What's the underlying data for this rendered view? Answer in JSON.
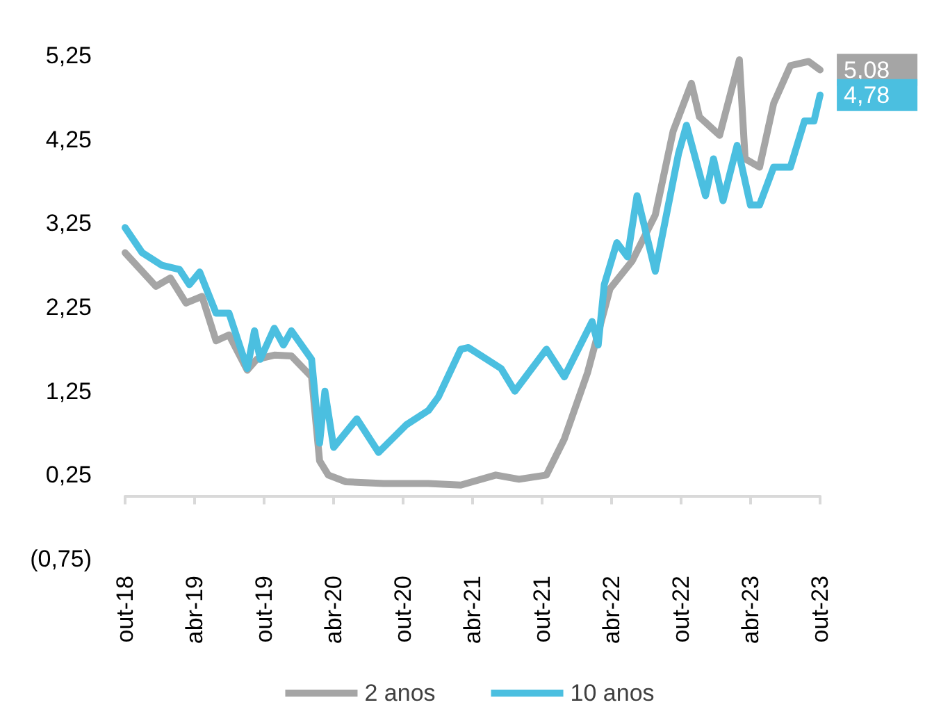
{
  "chart_data": {
    "type": "line",
    "xlim": [
      "2018-10-01",
      "2023-10-01"
    ],
    "xticks": [
      {
        "value": "2018-10-01",
        "label": "out-18"
      },
      {
        "value": "2019-04-01",
        "label": "abr-19"
      },
      {
        "value": "2019-10-01",
        "label": "out-19"
      },
      {
        "value": "2020-04-01",
        "label": "abr-20"
      },
      {
        "value": "2020-10-01",
        "label": "out-20"
      },
      {
        "value": "2021-04-01",
        "label": "abr-21"
      },
      {
        "value": "2021-10-01",
        "label": "out-21"
      },
      {
        "value": "2022-04-01",
        "label": "abr-22"
      },
      {
        "value": "2022-10-01",
        "label": "out-22"
      },
      {
        "value": "2023-04-01",
        "label": "abr-23"
      },
      {
        "value": "2023-10-01",
        "label": "out-23"
      }
    ],
    "ylim": [
      -0.75,
      5.25
    ],
    "yticks": [
      {
        "value": -0.75,
        "label": "(0,75)"
      },
      {
        "value": 0.25,
        "label": "0,25"
      },
      {
        "value": 1.25,
        "label": "1,25"
      },
      {
        "value": 2.25,
        "label": "2,25"
      },
      {
        "value": 3.25,
        "label": "3,25"
      },
      {
        "value": 4.25,
        "label": "4,25"
      },
      {
        "value": 5.25,
        "label": "5,25"
      }
    ],
    "grid": false,
    "legend": "bottom",
    "marker": "none",
    "line_style": "solid",
    "series": [
      {
        "name": "2 anos",
        "color": "#a5a5a5",
        "x": [
          "2018-10-01",
          "2018-12-21",
          "2019-01-28",
          "2019-03-10",
          "2019-04-21",
          "2019-05-28",
          "2019-07-01",
          "2019-08-18",
          "2019-09-12",
          "2019-10-28",
          "2019-12-12",
          "2020-02-03",
          "2020-02-24",
          "2020-03-18",
          "2020-05-03",
          "2020-08-10",
          "2020-12-06",
          "2021-03-01",
          "2021-06-01",
          "2021-08-01",
          "2021-10-12",
          "2021-11-28",
          "2022-01-28",
          "2022-03-28",
          "2022-05-25",
          "2022-07-25",
          "2022-09-10",
          "2022-10-28",
          "2022-11-18",
          "2023-01-10",
          "2023-03-03",
          "2023-03-18",
          "2023-04-25",
          "2023-06-01",
          "2023-07-15",
          "2023-09-01",
          "2023-10-01"
        ],
        "values": [
          2.9,
          2.5,
          2.6,
          2.3,
          2.38,
          1.85,
          1.92,
          1.5,
          1.63,
          1.68,
          1.67,
          1.42,
          0.42,
          0.25,
          0.17,
          0.15,
          0.15,
          0.13,
          0.25,
          0.2,
          0.25,
          0.68,
          1.47,
          2.47,
          2.8,
          3.35,
          4.35,
          4.92,
          4.52,
          4.3,
          5.2,
          4.02,
          3.92,
          4.68,
          5.13,
          5.18,
          5.08
        ],
        "value_labels": [
          null,
          null,
          null,
          null,
          null,
          null,
          null,
          null,
          null,
          null,
          null,
          null,
          null,
          null,
          null,
          null,
          null,
          null,
          null,
          null,
          null,
          null,
          null,
          null,
          null,
          null,
          null,
          null,
          null,
          null,
          null,
          null,
          null,
          null,
          null,
          null,
          "5,08"
        ]
      },
      {
        "name": "10 anos",
        "color": "#4bbfe0",
        "x": [
          "2018-10-01",
          "2018-11-15",
          "2019-01-06",
          "2019-02-21",
          "2019-03-19",
          "2019-04-15",
          "2019-05-28",
          "2019-07-01",
          "2019-08-18",
          "2019-09-06",
          "2019-09-21",
          "2019-10-28",
          "2019-11-21",
          "2019-12-12",
          "2020-02-03",
          "2020-02-24",
          "2020-03-09",
          "2020-04-01",
          "2020-06-01",
          "2020-07-28",
          "2020-10-09",
          "2020-12-06",
          "2021-01-01",
          "2021-03-01",
          "2021-03-21",
          "2021-06-15",
          "2021-07-21",
          "2021-10-12",
          "2021-11-28",
          "2022-02-09",
          "2022-02-25",
          "2022-03-13",
          "2022-04-15",
          "2022-05-13",
          "2022-06-07",
          "2022-07-25",
          "2022-09-24",
          "2022-10-15",
          "2022-12-04",
          "2022-12-25",
          "2023-01-19",
          "2023-02-25",
          "2023-04-01",
          "2023-04-25",
          "2023-06-01",
          "2023-07-15",
          "2023-08-21",
          "2023-09-15",
          "2023-10-01"
        ],
        "values": [
          3.2,
          2.9,
          2.75,
          2.7,
          2.52,
          2.67,
          2.18,
          2.18,
          1.52,
          1.97,
          1.63,
          2.0,
          1.8,
          1.97,
          1.63,
          0.63,
          1.25,
          0.58,
          0.92,
          0.52,
          0.85,
          1.02,
          1.18,
          1.75,
          1.77,
          1.52,
          1.25,
          1.75,
          1.42,
          2.08,
          1.8,
          2.52,
          3.02,
          2.85,
          3.58,
          2.68,
          4.08,
          4.42,
          3.58,
          4.02,
          3.52,
          4.18,
          3.47,
          3.47,
          3.92,
          3.92,
          4.47,
          4.47,
          4.78
        ],
        "value_labels": [
          null,
          null,
          null,
          null,
          null,
          null,
          null,
          null,
          null,
          null,
          null,
          null,
          null,
          null,
          null,
          null,
          null,
          null,
          null,
          null,
          null,
          null,
          null,
          null,
          null,
          null,
          null,
          null,
          null,
          null,
          null,
          null,
          null,
          null,
          null,
          null,
          null,
          null,
          null,
          null,
          null,
          null,
          null,
          null,
          null,
          null,
          null,
          null,
          "4,78"
        ]
      }
    ]
  }
}
